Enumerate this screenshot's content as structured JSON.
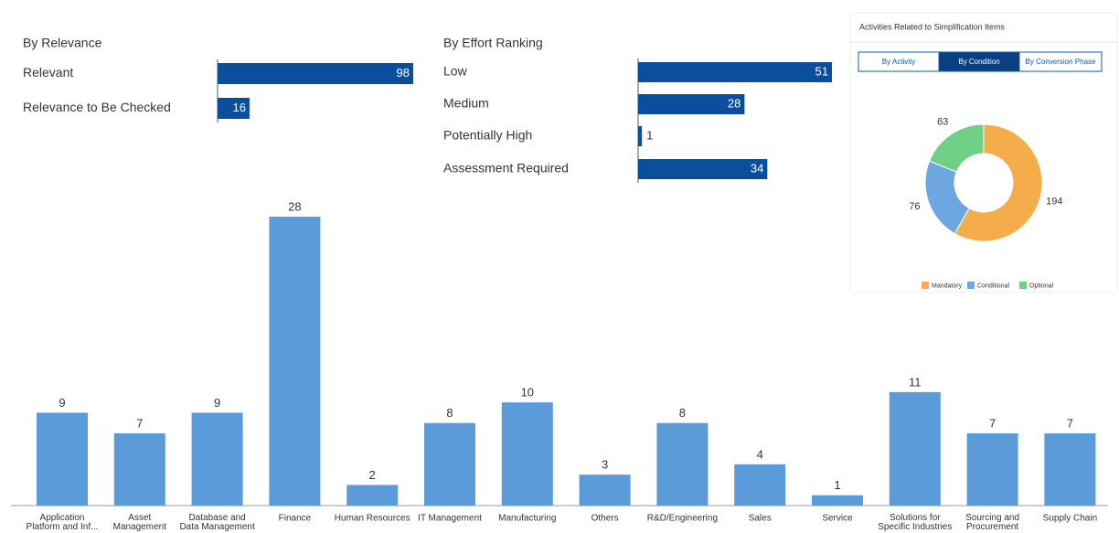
{
  "panel_title": "Activities Related to Simplification Items",
  "tabs": [
    {
      "label": "By Activity",
      "selected": false
    },
    {
      "label": "By Condition",
      "selected": true
    },
    {
      "label": "By Conversion Phase",
      "selected": false
    }
  ],
  "chart_data": [
    {
      "type": "hbar",
      "title": "By Relevance",
      "categories": [
        "Relevant",
        "Relevance to Be Checked"
      ],
      "values": [
        98,
        16
      ],
      "color": "#0b4f9c",
      "xlim": [
        0,
        98
      ]
    },
    {
      "type": "hbar",
      "title": "By Effort Ranking",
      "categories": [
        "Low",
        "Medium",
        "Potentially High",
        "Assessment Required"
      ],
      "values": [
        51,
        28,
        1,
        34
      ],
      "color": "#0b4f9c",
      "xlim": [
        0,
        51
      ]
    },
    {
      "type": "donut",
      "categories": [
        "Mandatory",
        "Conditional",
        "Optional"
      ],
      "values": [
        194,
        76,
        63
      ],
      "colors": [
        "#f5ac4a",
        "#6ea6e0",
        "#6fcf85"
      ]
    },
    {
      "type": "bar",
      "categories": [
        "Application\nPlatform and Inf...",
        "Asset\nManagement",
        "Database and\nData Management",
        "Finance",
        "Human Resources",
        "IT Management",
        "Manufacturing",
        "Others",
        "R&D/Engineering",
        "Sales",
        "Service",
        "Solutions for\nSpecific Industries",
        "Sourcing and\nProcurement",
        "Supply Chain"
      ],
      "values": [
        9,
        7,
        9,
        28,
        2,
        8,
        10,
        3,
        8,
        4,
        1,
        11,
        7,
        7
      ],
      "color": "#5b9bd9",
      "ylim": [
        0,
        28
      ]
    }
  ]
}
